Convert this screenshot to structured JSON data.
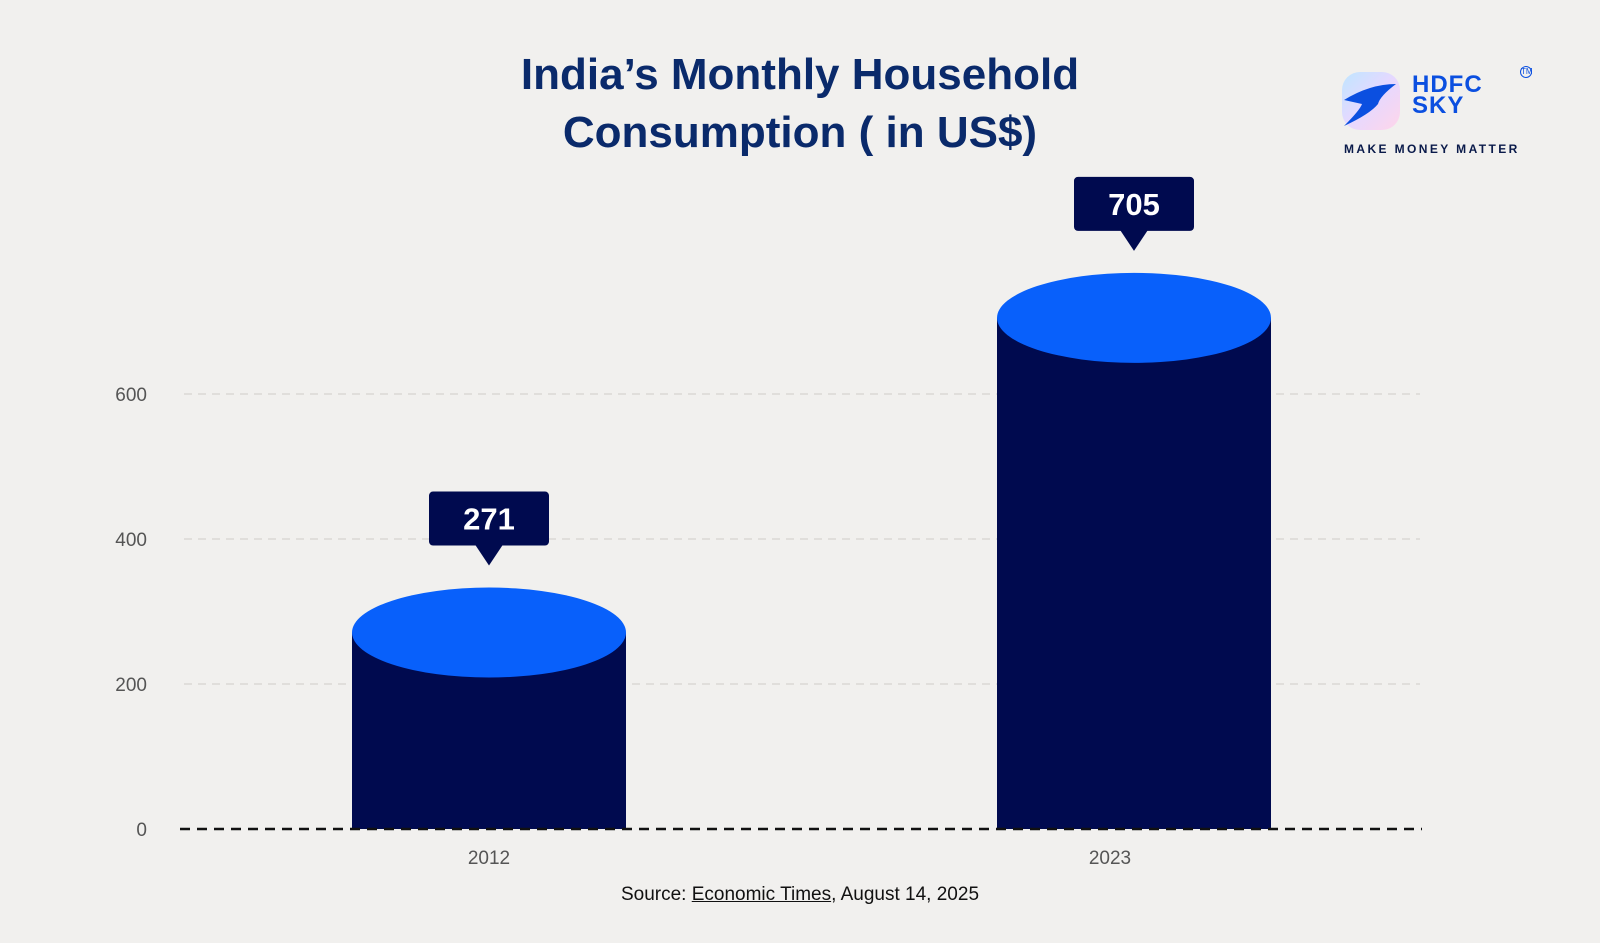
{
  "title_line1": "India’s Monthly Household",
  "title_line2": "Consumption ( in US$)",
  "logo": {
    "name": "HDFC SKY",
    "line1": "HDFC",
    "line2": "SKY",
    "tagline": "MAKE MONEY MATTER",
    "tm": "TM"
  },
  "source": {
    "prefix": "Source: ",
    "link": "Economic Times",
    "suffix": ", August 14, 2025"
  },
  "colors": {
    "bar_body": "#000a4f",
    "bar_top": "#0860fb",
    "label_bg": "#000a4f",
    "title": "#0a2a6b"
  },
  "chart_data": {
    "type": "bar",
    "title": "India’s Monthly Household Consumption ( in US$)",
    "categories": [
      "2012",
      "2023"
    ],
    "values": [
      271,
      705
    ],
    "data_labels": [
      "271",
      "705"
    ],
    "ylim": [
      0,
      700
    ],
    "yticks": [
      0,
      200,
      400,
      600
    ],
    "ytick_labels": [
      "0",
      "200",
      "400",
      "600"
    ],
    "grid": true,
    "style": "cylinder"
  }
}
